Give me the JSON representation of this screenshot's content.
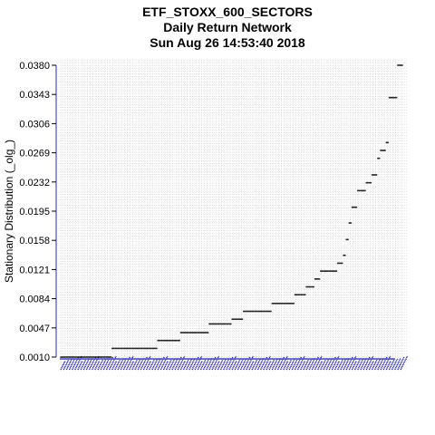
{
  "chart_data": {
    "type": "scatter",
    "title_lines": [
      "ETF_STOXX_600_SECTORS",
      "Daily Return Network",
      "Sun Aug 26 14:53:40 2018"
    ],
    "ylabel": "Stationary Distribution (_olg_)",
    "ylim": [
      0.001,
      0.038
    ],
    "yticks": [
      "0.0380",
      "0.0343",
      "0.0306",
      "0.0269",
      "0.0232",
      "0.0195",
      "0.0158",
      "0.0121",
      "0.0084",
      "0.0047",
      "0.0010"
    ],
    "grid": true,
    "node_count": 120,
    "series": [
      {
        "values": [
          0.001,
          0.001,
          0.001,
          0.001,
          0.001,
          0.001,
          0.001,
          0.001,
          0.001,
          0.001,
          0.001,
          0.001,
          0.001,
          0.001,
          0.001,
          0.001,
          0.001,
          0.001,
          0.0021,
          0.0021,
          0.0021,
          0.0021,
          0.0021,
          0.0021,
          0.0021,
          0.0021,
          0.0021,
          0.0021,
          0.0021,
          0.0021,
          0.0021,
          0.0021,
          0.0021,
          0.0021,
          0.0031,
          0.0031,
          0.0031,
          0.0031,
          0.0031,
          0.0031,
          0.0031,
          0.0031,
          0.0041,
          0.0041,
          0.0041,
          0.0041,
          0.0041,
          0.0041,
          0.0041,
          0.0041,
          0.0041,
          0.0041,
          0.0052,
          0.0052,
          0.0052,
          0.0052,
          0.0052,
          0.0052,
          0.0052,
          0.0052,
          0.0058,
          0.0058,
          0.0058,
          0.0058,
          0.0068,
          0.0068,
          0.0068,
          0.0068,
          0.0068,
          0.0068,
          0.0068,
          0.0068,
          0.0068,
          0.0068,
          0.0078,
          0.0078,
          0.0078,
          0.0078,
          0.0078,
          0.0078,
          0.0078,
          0.0078,
          0.0089,
          0.0089,
          0.0089,
          0.0089,
          0.0099,
          0.0099,
          0.0099,
          0.0109,
          0.0109,
          0.0119,
          0.0119,
          0.0119,
          0.0119,
          0.0119,
          0.0119,
          0.0129,
          0.0129,
          0.0139,
          0.0159,
          0.018,
          0.02,
          0.02,
          0.0221,
          0.0221,
          0.0221,
          0.0231,
          0.0231,
          0.0241,
          0.0241,
          0.0262,
          0.0272,
          0.0272,
          0.0282,
          0.0339,
          0.0339,
          0.0339,
          0.038,
          0.038
        ]
      }
    ]
  }
}
